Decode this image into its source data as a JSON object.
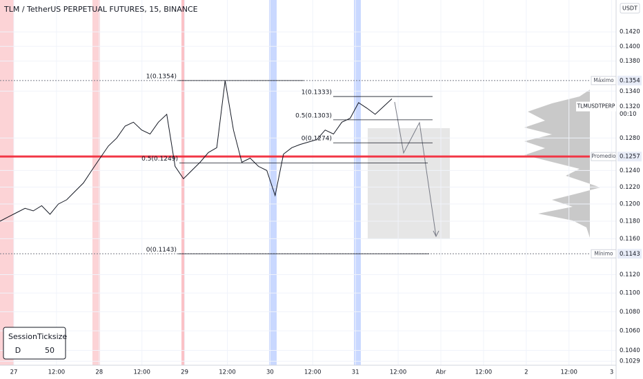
{
  "chart_data": {
    "type": "line",
    "title": "TLM / TetherUS PERPETUAL FUTURES, 15, BINANCE",
    "y_unit": "USDT",
    "log_scale": true,
    "grid": true,
    "ylim": [
      0.1025,
      0.146
    ],
    "yticks": [
      {
        "value": 0.142,
        "label": "0.1420"
      },
      {
        "value": 0.14,
        "label": "0.1400"
      },
      {
        "value": 0.138,
        "label": "0.1380"
      },
      {
        "value": 0.134,
        "label": "0.1340"
      },
      {
        "value": 0.128,
        "label": "0.1280"
      },
      {
        "value": 0.124,
        "label": "0.1240"
      },
      {
        "value": 0.122,
        "label": "0.1220"
      },
      {
        "value": 0.12,
        "label": "0.1200"
      },
      {
        "value": 0.118,
        "label": "0.1180"
      },
      {
        "value": 0.116,
        "label": "0.1160"
      },
      {
        "value": 0.112,
        "label": "0.1120"
      },
      {
        "value": 0.11,
        "label": "0.1100"
      },
      {
        "value": 0.108,
        "label": "0.1080"
      },
      {
        "value": 0.106,
        "label": "0.1060"
      },
      {
        "value": 0.104,
        "label": "0.1040"
      },
      {
        "value": 0.1029,
        "label": "0.1029"
      }
    ],
    "time_labels": [
      "27",
      "12:00",
      "28",
      "12:00",
      "29",
      "12:00",
      "30",
      "12:00",
      "31",
      "12:00",
      "Abr",
      "12:00",
      "2",
      "12:00",
      "3"
    ],
    "series": [
      {
        "name": "TLMUSDTPERP",
        "color": "#131722",
        "values": [
          0.118,
          0.1185,
          0.119,
          0.1195,
          0.1192,
          0.1198,
          0.1188,
          0.12,
          0.1205,
          0.1215,
          0.1225,
          0.124,
          0.1255,
          0.127,
          0.128,
          0.1295,
          0.13,
          0.129,
          0.1285,
          0.13,
          0.131,
          0.1245,
          0.123,
          0.124,
          0.125,
          0.1262,
          0.1268,
          0.1354,
          0.129,
          0.125,
          0.1255,
          0.1245,
          0.124,
          0.121,
          0.126,
          0.1268,
          0.1272,
          0.1275,
          0.1278,
          0.129,
          0.1285,
          0.13,
          0.1305,
          0.1325,
          0.1318,
          0.131,
          0.132,
          0.133
        ]
      }
    ],
    "last_price": {
      "value": 0.132,
      "label": "0.1320",
      "countdown": "00:10"
    },
    "levels": [
      {
        "name": "Máximo",
        "value": 0.1354,
        "label": "0.1354",
        "color": "#787b86"
      },
      {
        "name": "Promedio",
        "value": 0.1257,
        "label": "0.1257",
        "color": "#f23645"
      },
      {
        "name": "Mínimo",
        "value": 0.1143,
        "label": "0.1143",
        "color": "#787b86"
      }
    ],
    "fib_levels": [
      {
        "label": "1(0.1354)",
        "value": 0.1354
      },
      {
        "label": "0.5(0.1249)",
        "value": 0.1249
      },
      {
        "label": "0(0.1143)",
        "value": 0.1143
      },
      {
        "label": "1(0.1333)",
        "value": 0.1333
      },
      {
        "label": "0.5(0.1303)",
        "value": 0.1303
      },
      {
        "label": "0(0.1274)",
        "value": 0.1274
      }
    ],
    "session_table": {
      "headers": [
        "Session",
        "Ticksize"
      ],
      "row": [
        "D",
        "50"
      ]
    }
  }
}
